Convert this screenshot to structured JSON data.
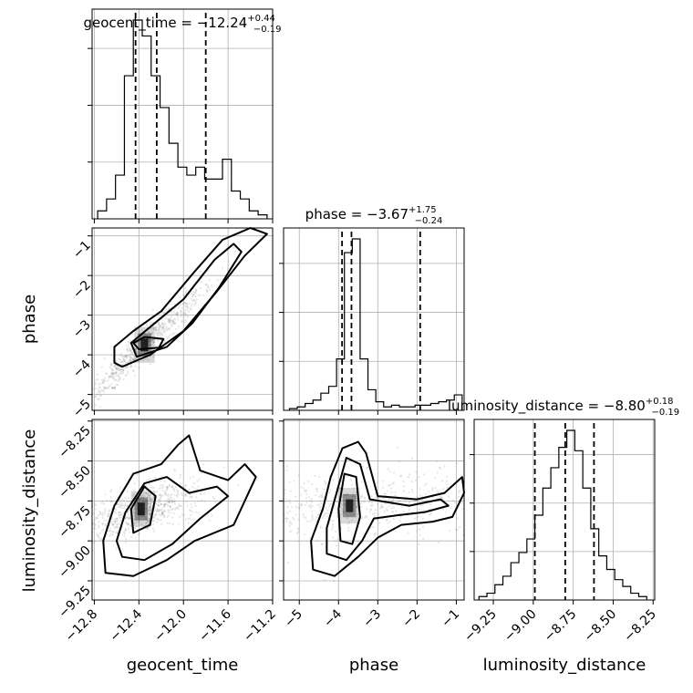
{
  "chart_data": {
    "type": "corner",
    "parameters": [
      "geocent_time",
      "phase",
      "luminosity_distance"
    ],
    "titles": [
      {
        "main": "geocent_time = −12.24",
        "plus": "+0.44",
        "minus": "−0.19"
      },
      {
        "main": "phase = −3.67",
        "plus": "+1.75",
        "minus": "−0.24"
      },
      {
        "main": "luminosity_distance = −8.80",
        "plus": "+0.18",
        "minus": "−0.19"
      }
    ],
    "ranges": {
      "geocent_time": [
        -12.82,
        -11.2
      ],
      "phase": [
        -5.4,
        -0.8
      ],
      "luminosity_distance": [
        -9.37,
        -8.24
      ]
    },
    "ticks": {
      "geocent_time": {
        "values": [
          -12.8,
          -12.4,
          -12.0,
          -11.6,
          -11.2
        ],
        "labels": [
          "−12.8",
          "−12.4",
          "−12.0",
          "−11.6",
          "−11.2"
        ]
      },
      "phase": {
        "values": [
          -5,
          -4,
          -3,
          -2,
          -1
        ],
        "labels": [
          "−5",
          "−4",
          "−3",
          "−2",
          "−1"
        ]
      },
      "luminosity_distance": {
        "values": [
          -9.25,
          -9.0,
          -8.75,
          -8.5,
          -8.25
        ],
        "labels": [
          "−9.25",
          "−9.00",
          "−8.75",
          "−8.50",
          "−8.25"
        ]
      }
    },
    "quantiles": {
      "geocent_time": [
        -12.43,
        -12.24,
        -11.8
      ],
      "phase": [
        -3.91,
        -3.67,
        -1.92
      ],
      "luminosity_distance": [
        -8.99,
        -8.8,
        -8.62
      ]
    },
    "histograms": {
      "geocent_time": {
        "edges": [
          -12.77,
          -12.69,
          -12.61,
          -12.53,
          -12.45,
          -12.37,
          -12.29,
          -12.21,
          -12.13,
          -12.05,
          -11.97,
          -11.89,
          -11.81,
          -11.73,
          -11.65,
          -11.57,
          -11.49,
          -11.41,
          -11.33,
          -11.25
        ],
        "counts": [
          0.04,
          0.1,
          0.22,
          0.72,
          1.0,
          0.92,
          0.72,
          0.56,
          0.38,
          0.26,
          0.22,
          0.26,
          0.2,
          0.2,
          0.3,
          0.14,
          0.1,
          0.04,
          0.02
        ]
      },
      "phase": {
        "edges": [
          -5.25,
          -5.05,
          -4.85,
          -4.65,
          -4.45,
          -4.25,
          -4.05,
          -3.85,
          -3.65,
          -3.45,
          -3.25,
          -3.05,
          -2.85,
          -2.65,
          -2.45,
          -2.25,
          -2.05,
          -1.85,
          -1.65,
          -1.45,
          -1.25,
          -1.05,
          -0.85
        ],
        "counts": [
          0.01,
          0.02,
          0.04,
          0.06,
          0.1,
          0.14,
          0.3,
          0.92,
          1.0,
          0.3,
          0.12,
          0.05,
          0.02,
          0.03,
          0.02,
          0.02,
          0.03,
          0.03,
          0.04,
          0.05,
          0.06,
          0.09
        ]
      },
      "luminosity_distance": {
        "edges": [
          -9.34,
          -9.29,
          -9.24,
          -9.19,
          -9.14,
          -9.09,
          -9.04,
          -8.99,
          -8.94,
          -8.89,
          -8.84,
          -8.79,
          -8.74,
          -8.69,
          -8.64,
          -8.59,
          -8.54,
          -8.49,
          -8.44,
          -8.39,
          -8.34,
          -8.29
        ],
        "counts": [
          0.02,
          0.04,
          0.09,
          0.14,
          0.22,
          0.28,
          0.36,
          0.5,
          0.66,
          0.78,
          0.9,
          1.0,
          0.88,
          0.66,
          0.42,
          0.26,
          0.18,
          0.12,
          0.08,
          0.04,
          0.02
        ]
      }
    },
    "contours": {
      "phase_vs_geocent_time": [
        [
          [
            -12.55,
            -4.3
          ],
          [
            -12.3,
            -4.0
          ],
          [
            -12.0,
            -3.4
          ],
          [
            -11.7,
            -2.4
          ],
          [
            -11.45,
            -1.5
          ],
          [
            -11.25,
            -0.95
          ],
          [
            -11.4,
            -0.8
          ],
          [
            -11.65,
            -1.1
          ],
          [
            -11.9,
            -1.9
          ],
          [
            -12.2,
            -2.9
          ],
          [
            -12.45,
            -3.4
          ],
          [
            -12.62,
            -3.8
          ],
          [
            -12.62,
            -4.2
          ]
        ],
        [
          [
            -12.42,
            -4.05
          ],
          [
            -12.15,
            -3.8
          ],
          [
            -11.92,
            -3.2
          ],
          [
            -11.68,
            -2.3
          ],
          [
            -11.48,
            -1.4
          ],
          [
            -11.55,
            -1.2
          ],
          [
            -11.72,
            -1.6
          ],
          [
            -12.0,
            -2.6
          ],
          [
            -12.3,
            -3.3
          ],
          [
            -12.47,
            -3.7
          ]
        ],
        [
          [
            -12.4,
            -3.86
          ],
          [
            -12.22,
            -3.82
          ],
          [
            -12.18,
            -3.6
          ],
          [
            -12.35,
            -3.55
          ],
          [
            -12.45,
            -3.7
          ]
        ]
      ],
      "luminosity_distance_vs_geocent_time": [
        [
          [
            -12.7,
            -9.2
          ],
          [
            -12.45,
            -9.22
          ],
          [
            -12.15,
            -9.12
          ],
          [
            -11.9,
            -9.0
          ],
          [
            -11.55,
            -8.9
          ],
          [
            -11.35,
            -8.6
          ],
          [
            -11.45,
            -8.52
          ],
          [
            -11.6,
            -8.62
          ],
          [
            -11.85,
            -8.56
          ],
          [
            -11.95,
            -8.34
          ],
          [
            -12.05,
            -8.4
          ],
          [
            -12.2,
            -8.52
          ],
          [
            -12.45,
            -8.58
          ],
          [
            -12.62,
            -8.78
          ],
          [
            -12.72,
            -9.0
          ]
        ],
        [
          [
            -12.55,
            -9.1
          ],
          [
            -12.35,
            -9.12
          ],
          [
            -12.1,
            -9.02
          ],
          [
            -11.85,
            -8.86
          ],
          [
            -11.6,
            -8.72
          ],
          [
            -11.7,
            -8.66
          ],
          [
            -11.95,
            -8.7
          ],
          [
            -12.15,
            -8.6
          ],
          [
            -12.35,
            -8.64
          ],
          [
            -12.52,
            -8.82
          ],
          [
            -12.6,
            -9.0
          ]
        ],
        [
          [
            -12.45,
            -8.95
          ],
          [
            -12.3,
            -8.9
          ],
          [
            -12.25,
            -8.72
          ],
          [
            -12.35,
            -8.66
          ],
          [
            -12.47,
            -8.8
          ]
        ]
      ],
      "luminosity_distance_vs_phase": [
        [
          [
            -4.65,
            -9.18
          ],
          [
            -4.1,
            -9.22
          ],
          [
            -3.5,
            -9.1
          ],
          [
            -3.0,
            -8.98
          ],
          [
            -2.4,
            -8.9
          ],
          [
            -1.6,
            -8.88
          ],
          [
            -1.1,
            -8.85
          ],
          [
            -0.8,
            -8.7
          ],
          [
            -0.85,
            -8.6
          ],
          [
            -1.3,
            -8.7
          ],
          [
            -2.0,
            -8.74
          ],
          [
            -3.0,
            -8.72
          ],
          [
            -3.3,
            -8.45
          ],
          [
            -3.5,
            -8.38
          ],
          [
            -3.9,
            -8.42
          ],
          [
            -4.2,
            -8.6
          ],
          [
            -4.4,
            -8.8
          ],
          [
            -4.7,
            -9.0
          ]
        ],
        [
          [
            -4.3,
            -9.08
          ],
          [
            -3.8,
            -9.12
          ],
          [
            -3.4,
            -9.0
          ],
          [
            -3.1,
            -8.86
          ],
          [
            -2.5,
            -8.84
          ],
          [
            -1.8,
            -8.82
          ],
          [
            -1.2,
            -8.78
          ],
          [
            -1.4,
            -8.74
          ],
          [
            -2.2,
            -8.78
          ],
          [
            -3.2,
            -8.74
          ],
          [
            -3.45,
            -8.52
          ],
          [
            -3.8,
            -8.48
          ],
          [
            -4.05,
            -8.7
          ],
          [
            -4.3,
            -8.92
          ]
        ],
        [
          [
            -3.95,
            -9.0
          ],
          [
            -3.65,
            -9.02
          ],
          [
            -3.45,
            -8.85
          ],
          [
            -3.55,
            -8.6
          ],
          [
            -3.85,
            -8.58
          ],
          [
            -4.0,
            -8.8
          ]
        ]
      ]
    },
    "density_peaks": {
      "phase_vs_geocent_time": [
        -12.35,
        -3.75
      ],
      "luminosity_distance_vs_geocent_time": [
        -12.38,
        -8.8
      ],
      "luminosity_distance_vs_phase": [
        -3.72,
        -8.78
      ]
    },
    "grid": true
  }
}
